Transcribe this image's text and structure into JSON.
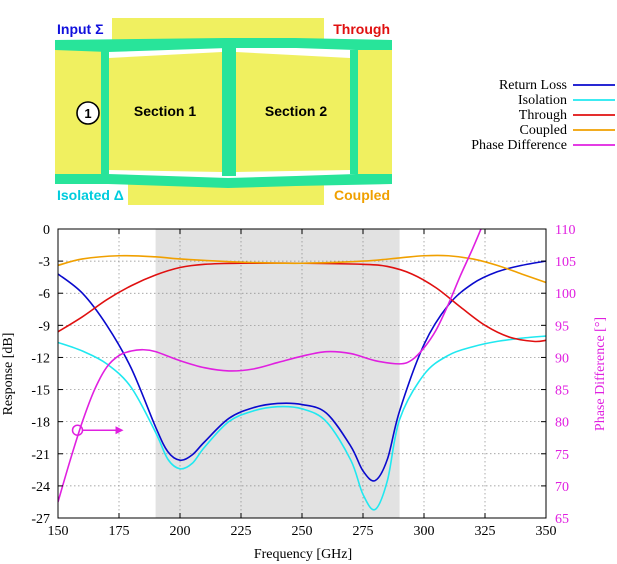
{
  "diagram": {
    "port_labels": {
      "input": "Input Σ",
      "through": "Through",
      "isolated": "Isolated Δ",
      "coupled": "Coupled"
    },
    "port_number": "1",
    "sections": [
      "Section 1",
      "Section 2"
    ],
    "colors": {
      "yellow": "#f0f060",
      "green": "#28e49a",
      "input": "#1010dd",
      "through": "#e01010",
      "isolated": "#00ccdd",
      "coupled": "#f0a000"
    }
  },
  "chart_data": {
    "type": "line",
    "title": "",
    "xlabel": "Frequency [GHz]",
    "ylabel": "Response [dB]",
    "y2label": "Phase Difference [°]",
    "xlim": [
      150,
      350
    ],
    "ylim": [
      -27,
      0
    ],
    "y2lim": [
      65,
      110
    ],
    "x_ticks": [
      150,
      175,
      200,
      225,
      250,
      275,
      300,
      325,
      350
    ],
    "y_ticks": [
      0,
      -3,
      -6,
      -9,
      -12,
      -15,
      -18,
      -21,
      -24,
      -27
    ],
    "y2_ticks": [
      110,
      105,
      100,
      95,
      90,
      85,
      80,
      75,
      70,
      65
    ],
    "grid": true,
    "legend_position": "top-right",
    "shaded_band": [
      190,
      290
    ],
    "annotation": "arrow from phase-difference curve pointing right (use right axis)",
    "series": [
      {
        "name": "Return Loss",
        "color": "#0a0acd",
        "axis": "left",
        "x": [
          150,
          160,
          170,
          180,
          190,
          195,
          200,
          205,
          210,
          220,
          230,
          240,
          250,
          260,
          270,
          275,
          280,
          285,
          290,
          300,
          310,
          320,
          330,
          340,
          350
        ],
        "y": [
          -4.2,
          -6.0,
          -9.0,
          -13.0,
          -18.5,
          -20.8,
          -21.6,
          -21.1,
          -19.9,
          -17.7,
          -16.7,
          -16.3,
          -16.4,
          -17.2,
          -20.3,
          -22.6,
          -23.5,
          -21.5,
          -17.0,
          -10.8,
          -7.1,
          -5.1,
          -4.0,
          -3.4,
          -3.0
        ]
      },
      {
        "name": "Isolation",
        "color": "#20e8f0",
        "axis": "left",
        "x": [
          150,
          160,
          170,
          180,
          190,
          195,
          200,
          205,
          210,
          220,
          230,
          240,
          250,
          260,
          270,
          275,
          280,
          285,
          290,
          300,
          310,
          320,
          330,
          340,
          350
        ],
        "y": [
          -10.6,
          -11.4,
          -12.6,
          -14.8,
          -19.0,
          -21.5,
          -22.4,
          -21.9,
          -20.4,
          -18.0,
          -17.0,
          -16.6,
          -16.8,
          -18.0,
          -21.6,
          -24.8,
          -26.2,
          -23.5,
          -17.8,
          -13.6,
          -11.8,
          -11.0,
          -10.5,
          -10.2,
          -10.0
        ]
      },
      {
        "name": "Through",
        "color": "#e01010",
        "axis": "left",
        "x": [
          150,
          160,
          170,
          180,
          190,
          200,
          210,
          225,
          250,
          275,
          285,
          295,
          305,
          315,
          325,
          335,
          345,
          350
        ],
        "y": [
          -9.6,
          -8.2,
          -6.6,
          -5.3,
          -4.3,
          -3.6,
          -3.3,
          -3.2,
          -3.2,
          -3.3,
          -3.5,
          -4.2,
          -5.5,
          -7.3,
          -9.0,
          -10.1,
          -10.5,
          -10.4
        ]
      },
      {
        "name": "Coupled",
        "color": "#f0a000",
        "axis": "left",
        "x": [
          150,
          160,
          175,
          190,
          200,
          225,
          250,
          275,
          290,
          300,
          310,
          320,
          330,
          340,
          350
        ],
        "y": [
          -3.4,
          -2.8,
          -2.5,
          -2.6,
          -2.8,
          -3.1,
          -3.2,
          -3.0,
          -2.7,
          -2.5,
          -2.5,
          -2.8,
          -3.4,
          -4.2,
          -5.0
        ],
        "y_smooth": true
      },
      {
        "name": "Phase Difference",
        "color": "#e020e0",
        "axis": "right",
        "x": [
          150,
          155,
          160,
          165,
          170,
          175,
          180,
          185,
          190,
          200,
          210,
          220,
          230,
          240,
          250,
          260,
          270,
          280,
          290,
          295,
          300,
          305,
          310,
          315,
          320,
          325
        ],
        "y": [
          67.5,
          74.0,
          80.0,
          85.0,
          88.5,
          90.3,
          91.0,
          91.2,
          90.9,
          89.5,
          88.4,
          87.9,
          88.2,
          89.2,
          90.2,
          90.9,
          90.6,
          89.5,
          89.0,
          89.6,
          91.5,
          94.3,
          98.3,
          102.8,
          107.0,
          111.5
        ]
      }
    ]
  }
}
